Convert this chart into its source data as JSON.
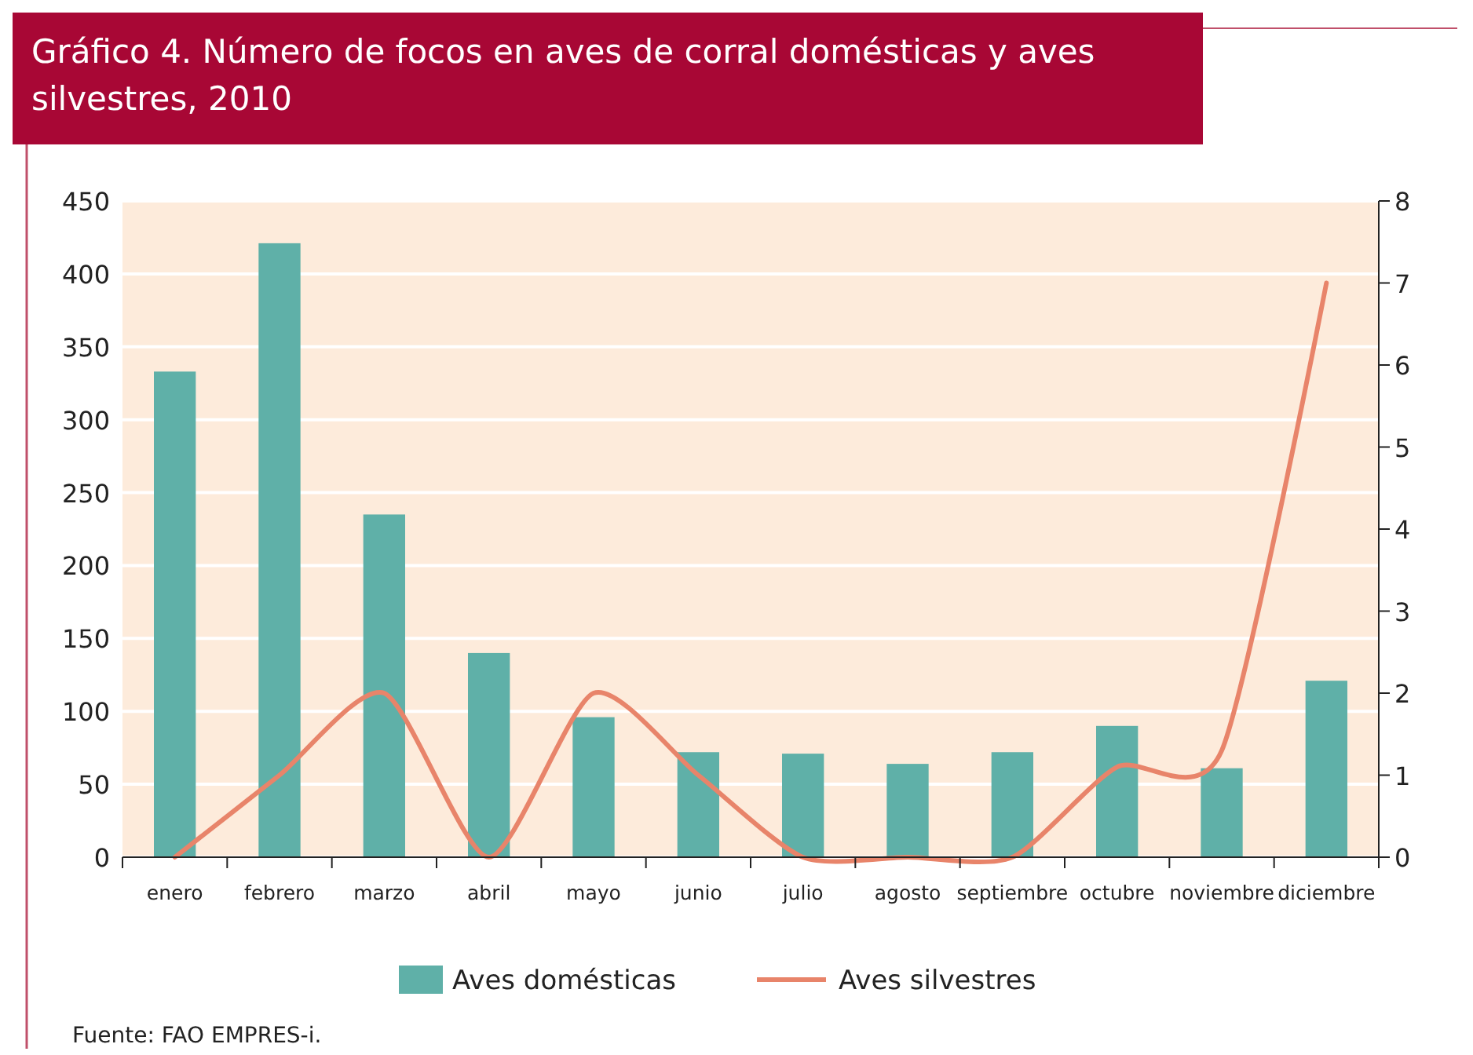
{
  "chart_data": {
    "type": "bar",
    "title": "Gráfico 4. Número de focos en aves de corral domésticas y aves silvestres, 2010",
    "categories": [
      "enero",
      "febrero",
      "marzo",
      "abril",
      "mayo",
      "junio",
      "julio",
      "agosto",
      "septiembre",
      "octubre",
      "noviembre",
      "diciembre"
    ],
    "series": [
      {
        "name": "Aves domésticas",
        "color": "#5fb0a8",
        "values": [
          333,
          421,
          235,
          140,
          96,
          72,
          71,
          64,
          72,
          90,
          61,
          121
        ]
      },
      {
        "name": "Aves silvestres",
        "type": "line",
        "axis": "y2",
        "color": "#e8846a",
        "values": [
          0,
          1,
          2,
          0,
          2,
          1,
          0,
          0,
          0,
          1.1,
          1.3,
          7
        ]
      }
    ],
    "ylim": [
      0,
      450
    ],
    "yticks": [
      0,
      50,
      100,
      150,
      200,
      250,
      300,
      350,
      400,
      450
    ],
    "y2lim": [
      0,
      8
    ],
    "y2ticks": [
      0,
      1,
      2,
      3,
      4,
      5,
      6,
      7,
      8
    ],
    "grid": "y",
    "legend": "bottom",
    "marker": "none",
    "annotations": [
      "Fuente: FAO EMPRES-i."
    ]
  }
}
